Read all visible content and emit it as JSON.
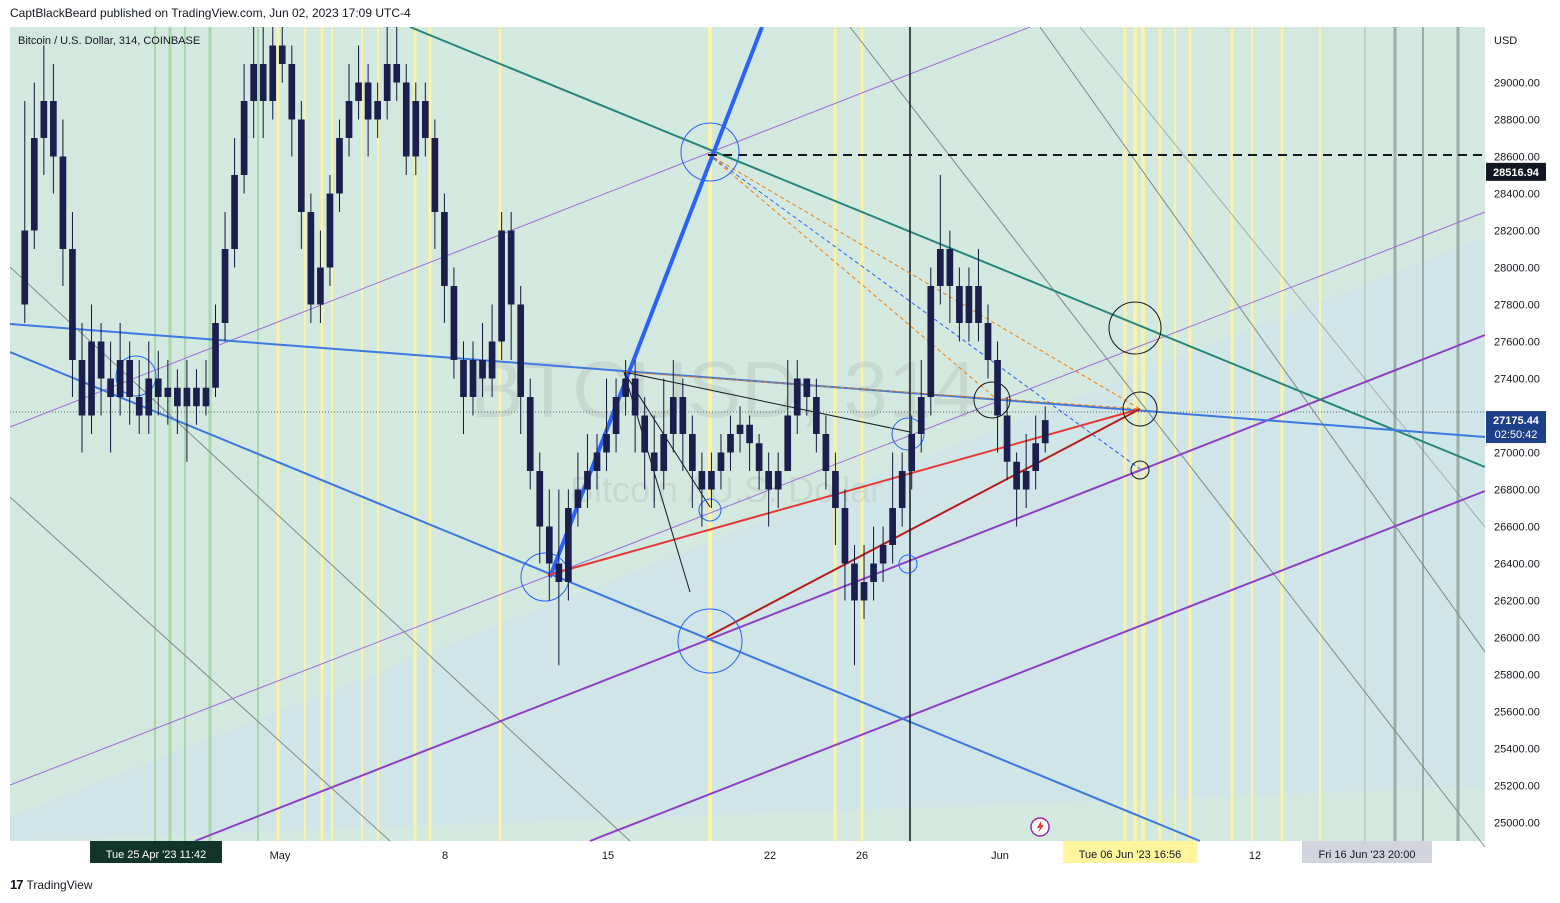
{
  "header": {
    "publish_line": "CaptBlackBeard published on TradingView.com, Jun 02, 2023 17:09 UTC-4"
  },
  "symbol_line": "Bitcoin / U.S. Dollar, 314, COINBASE",
  "watermark": {
    "ticker": "BTCUSD, 314",
    "name": "Bitcoin / U.S. Dollar"
  },
  "footer": {
    "logo": "17",
    "brand": "TradingView"
  },
  "colors": {
    "bg": "#d3e8df",
    "yellow": "#fff59d",
    "blue": "#2962ff",
    "purple": "#9c27b0",
    "red": "#e53935",
    "teal": "#26867a"
  },
  "chart_data": {
    "type": "candlestick",
    "symbol": "BTCUSD",
    "interval": "314",
    "exchange": "COINBASE",
    "currency": "USD",
    "ylim": [
      24900,
      29300
    ],
    "y_ticks": [
      25000,
      25200,
      25400,
      25600,
      25800,
      26000,
      26200,
      26400,
      26600,
      26800,
      27000,
      27200,
      27400,
      27600,
      27800,
      28000,
      28200,
      28400,
      28600,
      28800,
      29000
    ],
    "y_tick_labels": [
      "25000.00",
      "25200.00",
      "25400.00",
      "25600.00",
      "25800.00",
      "26000.00",
      "26200.00",
      "26400.00",
      "26600.00",
      "26800.00",
      "27000.00",
      "27200.00",
      "27400.00",
      "27600.00",
      "27800.00",
      "28000.00",
      "28200.00",
      "28400.00",
      "28600.00",
      "28800.00",
      "29000.00"
    ],
    "x_ticks": [
      "May",
      "8",
      "15",
      "22",
      "26",
      "Jun",
      "12"
    ],
    "x_tick_index": [
      270,
      435,
      598,
      760,
      852,
      990,
      1245
    ],
    "crosshair_x_label": "Tue 25 Apr '23   11:42",
    "future_labels": [
      "Tue 06 Jun '23   16:56",
      "Fri 16 Jun '23   20:00"
    ],
    "price_labels": [
      {
        "value": 28516.94,
        "text": "28516.94"
      },
      {
        "value": 27175.44,
        "text": "27175.44",
        "sub": "02:50:42"
      }
    ],
    "candles": [
      [
        27800,
        28200,
        28900,
        27700
      ],
      [
        28200,
        28700,
        29000,
        28100
      ],
      [
        28700,
        28900,
        29200,
        28500
      ],
      [
        28900,
        28600,
        29100,
        28400
      ],
      [
        28600,
        28100,
        28800,
        27900
      ],
      [
        28100,
        27500,
        28300,
        27300
      ],
      [
        27500,
        27200,
        27700,
        27000
      ],
      [
        27200,
        27600,
        27800,
        27100
      ],
      [
        27600,
        27400,
        27700,
        27200
      ],
      [
        27400,
        27300,
        27600,
        27000
      ],
      [
        27300,
        27500,
        27700,
        27200
      ],
      [
        27500,
        27300,
        27600,
        27150
      ],
      [
        27300,
        27200,
        27500,
        27100
      ],
      [
        27200,
        27400,
        27600,
        27100
      ],
      [
        27400,
        27300,
        27550,
        27200
      ],
      [
        27300,
        27350,
        27500,
        27150
      ],
      [
        27350,
        27250,
        27450,
        27100
      ],
      [
        27250,
        27350,
        27500,
        26950
      ],
      [
        27350,
        27250,
        27450,
        27150
      ],
      [
        27250,
        27350,
        27500,
        27200
      ],
      [
        27350,
        27700,
        27800,
        27300
      ],
      [
        27700,
        28100,
        28300,
        27600
      ],
      [
        28100,
        28500,
        28700,
        28000
      ],
      [
        28500,
        28900,
        29100,
        28400
      ],
      [
        28900,
        29100,
        29300,
        28700
      ],
      [
        29100,
        28900,
        29300,
        28700
      ],
      [
        28900,
        29200,
        29300,
        28800
      ],
      [
        29200,
        29100,
        29300,
        29000
      ],
      [
        29100,
        28800,
        29200,
        28600
      ],
      [
        28800,
        28300,
        28900,
        28100
      ],
      [
        28300,
        27800,
        28400,
        27700
      ],
      [
        27800,
        28000,
        28200,
        27700
      ],
      [
        28000,
        28400,
        28500,
        27900
      ],
      [
        28400,
        28700,
        28800,
        28300
      ],
      [
        28700,
        28900,
        29100,
        28600
      ],
      [
        28900,
        29000,
        29200,
        28800
      ],
      [
        29000,
        28800,
        29100,
        28600
      ],
      [
        28800,
        28900,
        29000,
        28700
      ],
      [
        28900,
        29100,
        29300,
        28800
      ],
      [
        29100,
        29000,
        29300,
        28900
      ],
      [
        29000,
        28600,
        29100,
        28500
      ],
      [
        28600,
        28900,
        29000,
        28500
      ],
      [
        28900,
        28700,
        29000,
        28600
      ],
      [
        28700,
        28300,
        28800,
        28100
      ],
      [
        28300,
        27900,
        28400,
        27700
      ],
      [
        27900,
        27500,
        28000,
        27400
      ],
      [
        27500,
        27300,
        27600,
        27100
      ],
      [
        27300,
        27500,
        27600,
        27200
      ],
      [
        27500,
        27400,
        27700,
        27300
      ],
      [
        27400,
        27600,
        27800,
        27300
      ],
      [
        27600,
        28200,
        28300,
        27500
      ],
      [
        28200,
        27800,
        28300,
        27500
      ],
      [
        27800,
        27300,
        27900,
        27100
      ],
      [
        27300,
        26900,
        27400,
        26800
      ],
      [
        26900,
        26600,
        27000,
        26400
      ],
      [
        26600,
        26400,
        26800,
        26200
      ],
      [
        26400,
        26300,
        26800,
        25850
      ],
      [
        26300,
        26700,
        26800,
        26200
      ],
      [
        26700,
        26800,
        27000,
        26600
      ],
      [
        26800,
        26900,
        27100,
        26700
      ],
      [
        26900,
        27000,
        27100,
        26800
      ],
      [
        27000,
        27100,
        27400,
        26900
      ],
      [
        27100,
        27300,
        27400,
        27000
      ],
      [
        27300,
        27400,
        27500,
        27200
      ],
      [
        27400,
        27200,
        27500,
        27000
      ],
      [
        27200,
        27000,
        27300,
        26800
      ],
      [
        27000,
        26900,
        27200,
        26700
      ],
      [
        26900,
        27100,
        27400,
        26800
      ],
      [
        27100,
        27300,
        27500,
        27000
      ],
      [
        27300,
        27100,
        27400,
        26900
      ],
      [
        27100,
        26900,
        27200,
        26700
      ],
      [
        26900,
        26800,
        27000,
        26600
      ],
      [
        26800,
        26900,
        27000,
        26700
      ],
      [
        26900,
        27000,
        27100,
        26800
      ],
      [
        27000,
        27100,
        27200,
        26900
      ],
      [
        27100,
        27150,
        27250,
        27000
      ],
      [
        27150,
        27050,
        27200,
        26900
      ],
      [
        27050,
        26900,
        27100,
        26800
      ],
      [
        26900,
        26800,
        27000,
        26600
      ],
      [
        26800,
        26900,
        27000,
        26700
      ],
      [
        26900,
        27200,
        27500,
        26900
      ],
      [
        27200,
        27400,
        27500,
        27100
      ],
      [
        27400,
        27300,
        27400,
        27200
      ],
      [
        27300,
        27100,
        27400,
        27000
      ],
      [
        27100,
        26900,
        27200,
        26800
      ],
      [
        26900,
        26700,
        27000,
        26500
      ],
      [
        26700,
        26400,
        26800,
        26200
      ],
      [
        26400,
        26200,
        26500,
        25850
      ],
      [
        26200,
        26300,
        26500,
        26100
      ],
      [
        26300,
        26400,
        26600,
        26200
      ],
      [
        26400,
        26500,
        26600,
        26300
      ],
      [
        26500,
        26700,
        27000,
        26400
      ],
      [
        26700,
        26900,
        27000,
        26600
      ],
      [
        26900,
        27100,
        27200,
        26800
      ],
      [
        27100,
        27300,
        27500,
        27000
      ],
      [
        27300,
        27900,
        28000,
        27200
      ],
      [
        27900,
        28100,
        28500,
        27800
      ],
      [
        28100,
        27900,
        28200,
        27700
      ],
      [
        27900,
        27700,
        28000,
        27600
      ],
      [
        27700,
        27900,
        28000,
        27600
      ],
      [
        27900,
        27700,
        28100,
        27600
      ],
      [
        27700,
        27500,
        27800,
        27400
      ],
      [
        27500,
        27200,
        27600,
        27000
      ],
      [
        27200,
        26950,
        27300,
        26850
      ],
      [
        26950,
        26800,
        27000,
        26600
      ],
      [
        26800,
        26900,
        27100,
        26700
      ],
      [
        26900,
        27050,
        27200,
        26800
      ],
      [
        27050,
        27175,
        27250,
        27000
      ]
    ],
    "annotations": {
      "levels": [
        {
          "value": 28516.94,
          "style": "dashed"
        }
      ],
      "circles": 12,
      "trendlines": "blue, purple, red, teal and grey trend lines with yellow and green vertical time-cycle lines"
    }
  }
}
